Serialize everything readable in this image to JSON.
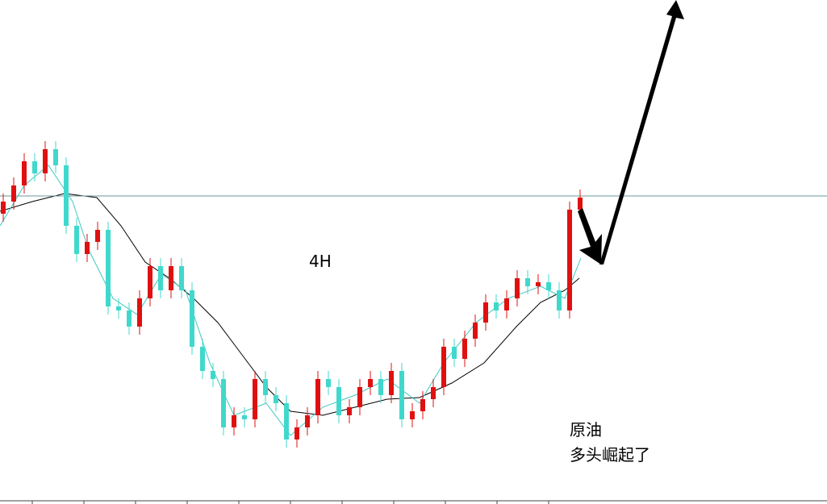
{
  "chart_data": {
    "type": "candlestick",
    "title": "4H",
    "annotations": [
      "原油",
      "多头崛起了"
    ],
    "up_color": "#e01010",
    "down_color": "#40d8cc",
    "level": 382,
    "level_color": "#6a9a9a",
    "ylim": [
      0,
      625
    ],
    "open": [
      360,
      375,
      395,
      425,
      410,
      440,
      420,
      345,
      310,
      325,
      340,
      245,
      240,
      220,
      255,
      295,
      265,
      295,
      265,
      195,
      165,
      155,
      95,
      110,
      105,
      155,
      135,
      125,
      80,
      95,
      110,
      155,
      145,
      110,
      120,
      145,
      155,
      135,
      165,
      105,
      115,
      130,
      145,
      195,
      180,
      205,
      225,
      250,
      240,
      255,
      280,
      270,
      275,
      265,
      240,
      365
    ],
    "high": [
      385,
      405,
      435,
      435,
      450,
      450,
      430,
      355,
      335,
      350,
      350,
      255,
      250,
      265,
      305,
      305,
      305,
      305,
      275,
      205,
      175,
      165,
      120,
      120,
      165,
      165,
      145,
      135,
      105,
      120,
      165,
      165,
      155,
      130,
      155,
      165,
      165,
      175,
      175,
      125,
      140,
      155,
      205,
      205,
      215,
      235,
      260,
      260,
      265,
      290,
      290,
      285,
      285,
      275,
      375,
      390
    ],
    "low": [
      350,
      365,
      385,
      400,
      400,
      410,
      335,
      300,
      300,
      315,
      235,
      230,
      210,
      210,
      245,
      255,
      255,
      255,
      185,
      155,
      145,
      85,
      85,
      95,
      95,
      125,
      115,
      70,
      70,
      85,
      100,
      135,
      100,
      100,
      110,
      135,
      125,
      125,
      95,
      95,
      105,
      120,
      135,
      170,
      170,
      195,
      215,
      230,
      230,
      245,
      260,
      260,
      255,
      230,
      230,
      355
    ],
    "close": [
      375,
      395,
      425,
      410,
      440,
      420,
      345,
      310,
      325,
      340,
      245,
      240,
      220,
      255,
      295,
      265,
      295,
      265,
      195,
      165,
      155,
      95,
      110,
      105,
      155,
      135,
      125,
      80,
      95,
      110,
      155,
      145,
      110,
      120,
      145,
      155,
      135,
      165,
      105,
      115,
      130,
      145,
      195,
      180,
      205,
      225,
      250,
      240,
      255,
      280,
      270,
      275,
      265,
      240,
      365,
      380
    ]
  }
}
